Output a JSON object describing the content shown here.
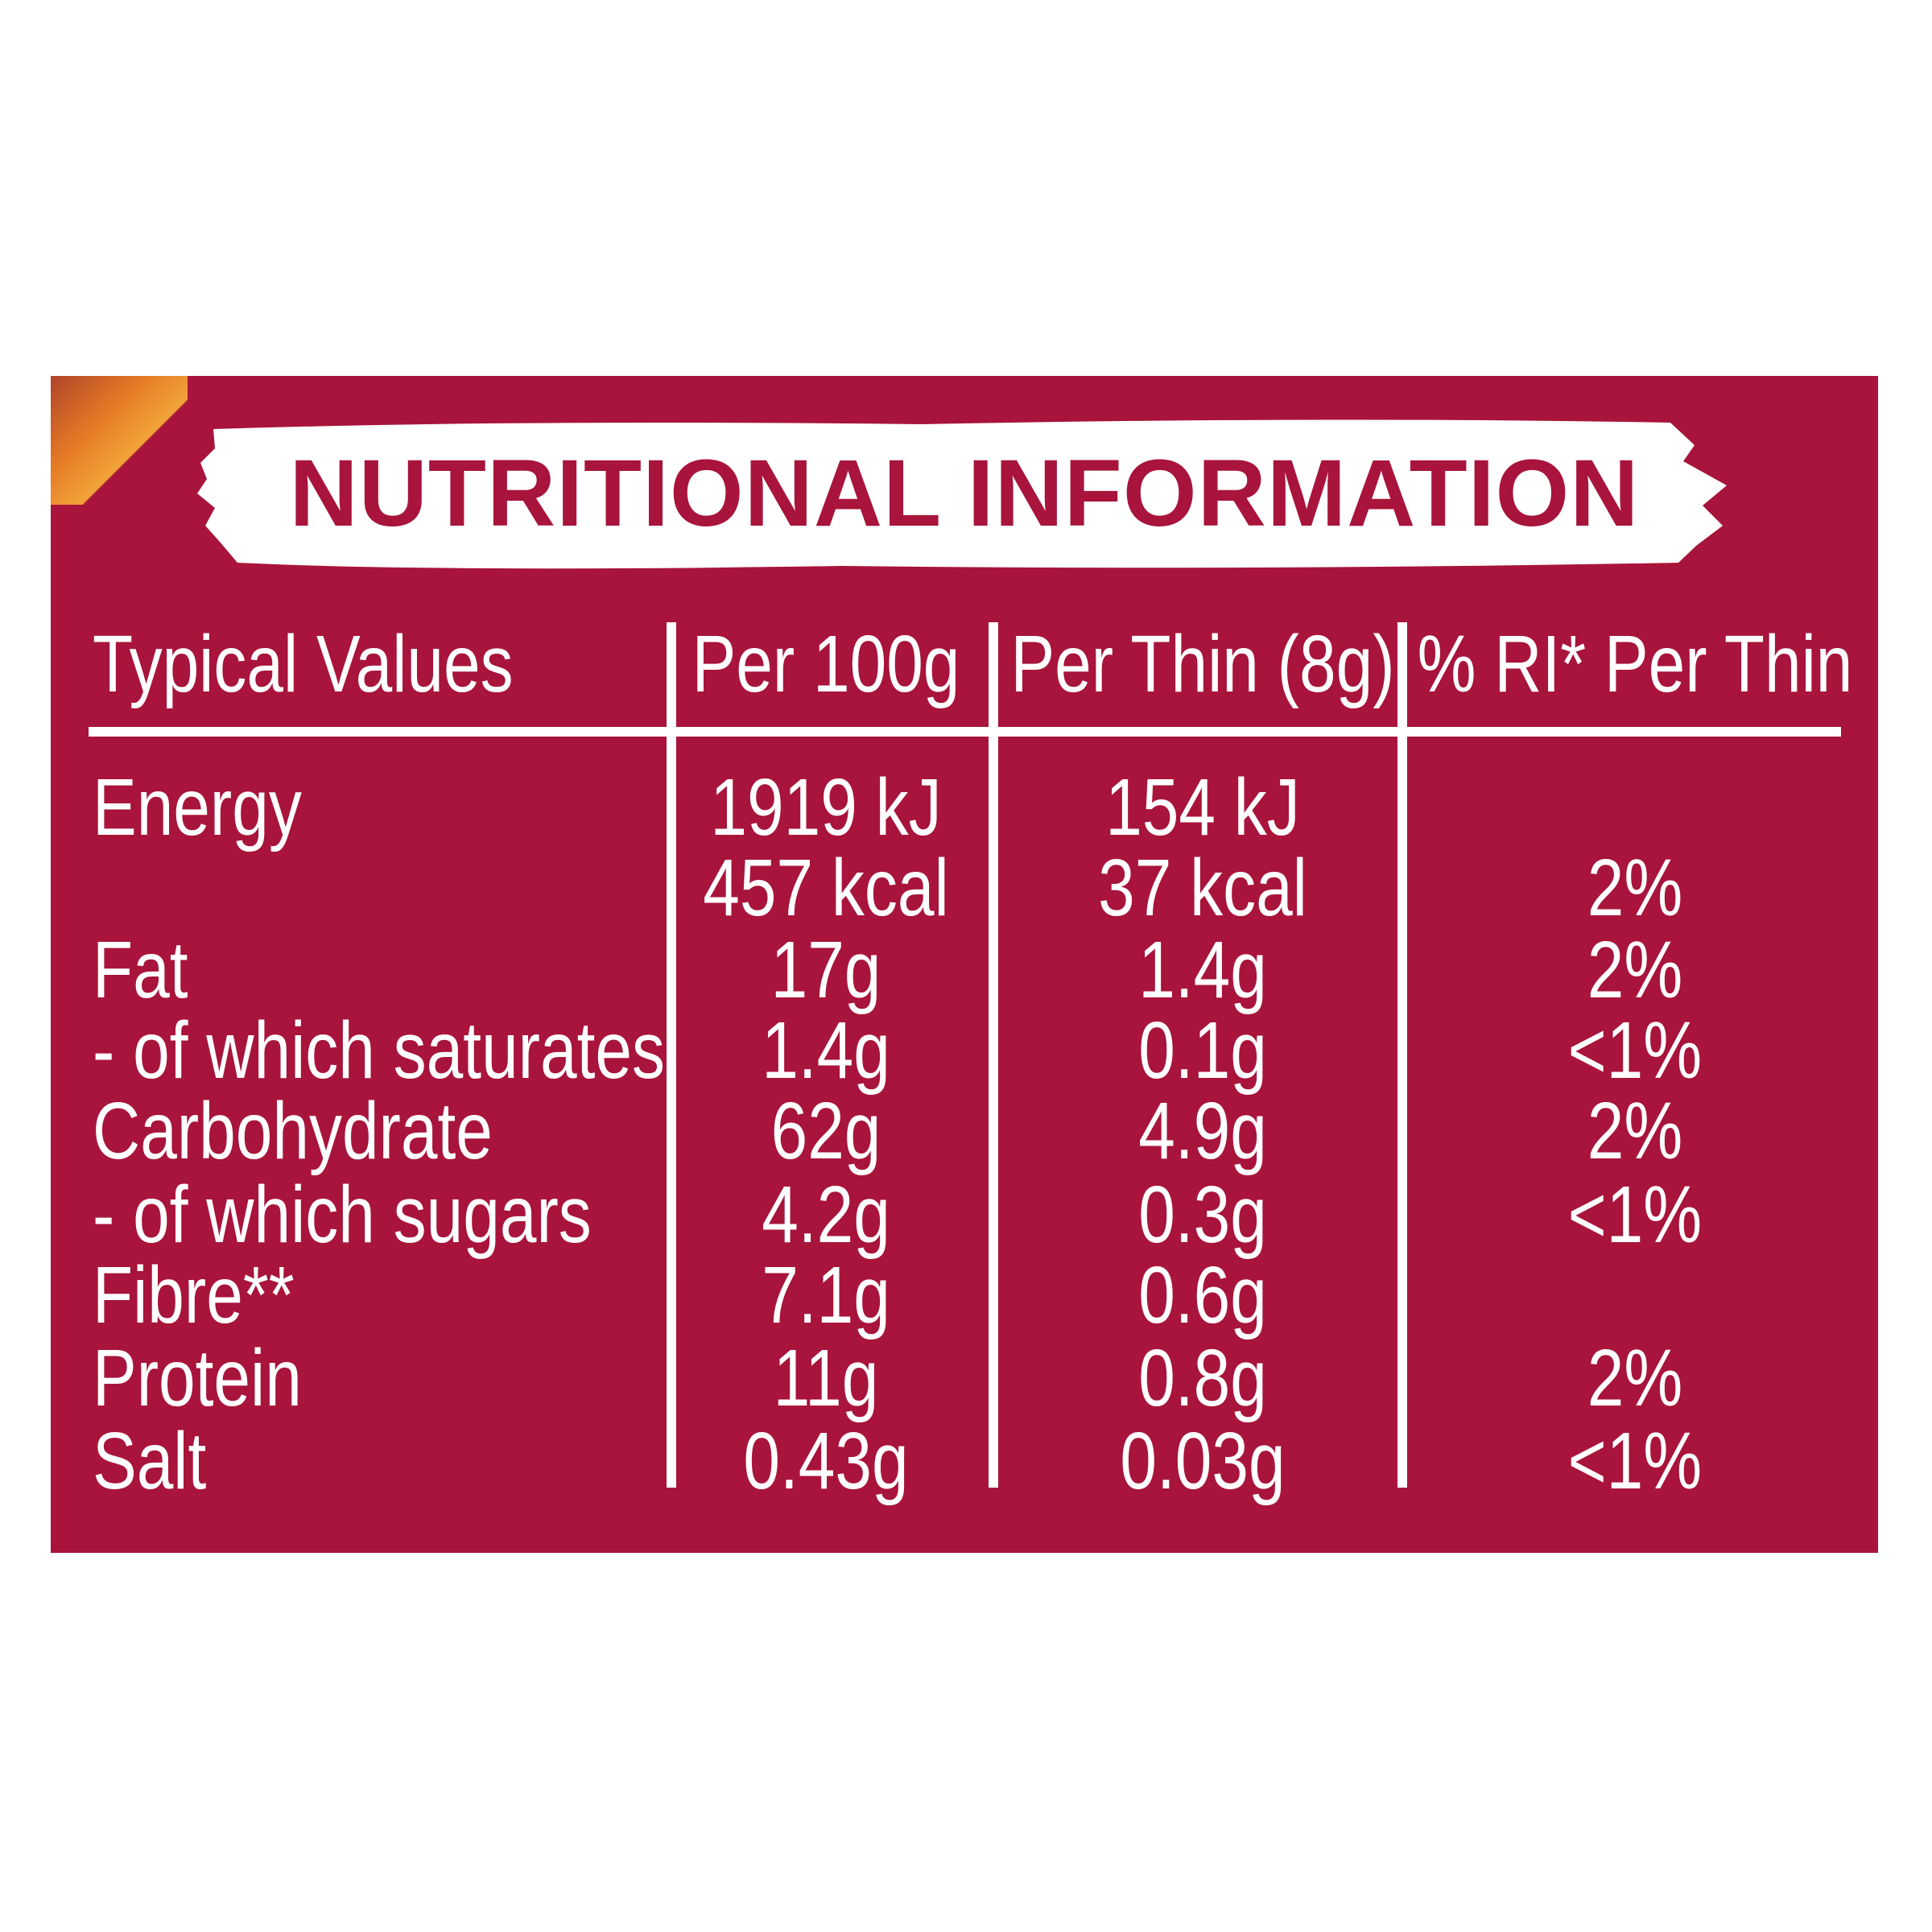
{
  "title": "NUTRITIONAL INFORMATION",
  "colors": {
    "background": "#a8143b",
    "text": "#ffffff",
    "banner": "#ffffff"
  },
  "headers": [
    "Typical Values",
    "Per 100g",
    "Per Thin (8g)",
    "% RI* Per Thin"
  ],
  "rows": [
    {
      "label": "Energy",
      "per100g": "1919 kJ",
      "perThin": "154 kJ",
      "ri": ""
    },
    {
      "label": "",
      "per100g": "457 kcal",
      "perThin": "37 kcal",
      "ri": "2%"
    },
    {
      "label": "Fat",
      "per100g": "17g",
      "perThin": "1.4g",
      "ri": "2%"
    },
    {
      "label": "- of which saturates",
      "per100g": "1.4g",
      "perThin": "0.1g",
      "ri": "<1%"
    },
    {
      "label": "Carbohydrate",
      "per100g": "62g",
      "perThin": "4.9g",
      "ri": "2%"
    },
    {
      "label": "- of which sugars",
      "per100g": "4.2g",
      "perThin": "0.3g",
      "ri": "<1%"
    },
    {
      "label": "Fibre**",
      "per100g": "7.1g",
      "perThin": "0.6g",
      "ri": ""
    },
    {
      "label": "Protein",
      "per100g": "11g",
      "perThin": "0.8g",
      "ri": "2%"
    },
    {
      "label": "Salt",
      "per100g": "0.43g",
      "perThin": "0.03g",
      "ri": "<1%"
    }
  ]
}
